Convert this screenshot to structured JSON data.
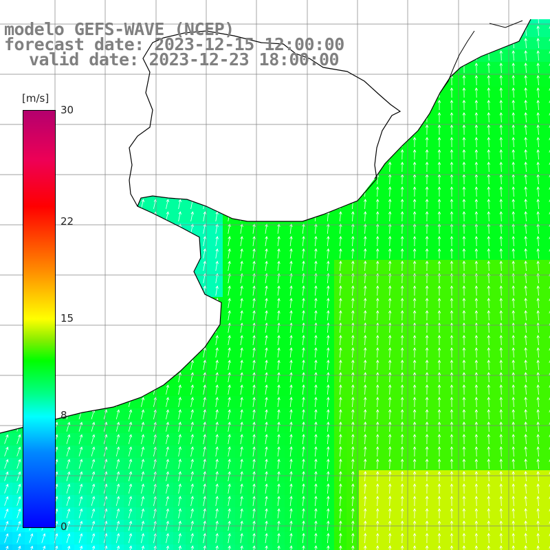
{
  "title": {
    "line1": "modelo GEFS-WAVE (NCEP)",
    "line2": "forecast date: 2023-12-15 12:00:00",
    "line3": "valid date: 2023-12-23 18:00:00"
  },
  "colorbar": {
    "unit": "[m/s]",
    "min": 0,
    "max": 30,
    "ticks": [
      {
        "value": 30,
        "label": "30"
      },
      {
        "value": 22,
        "label": "22"
      },
      {
        "value": 15,
        "label": "15"
      },
      {
        "value": 8,
        "label": "8"
      },
      {
        "value": 0,
        "label": "0"
      }
    ]
  },
  "colors": {
    "land": "#ffffff",
    "coast": "#000000",
    "grid": "#808080",
    "arrows": "#ffffff",
    "title": "#808080"
  }
}
